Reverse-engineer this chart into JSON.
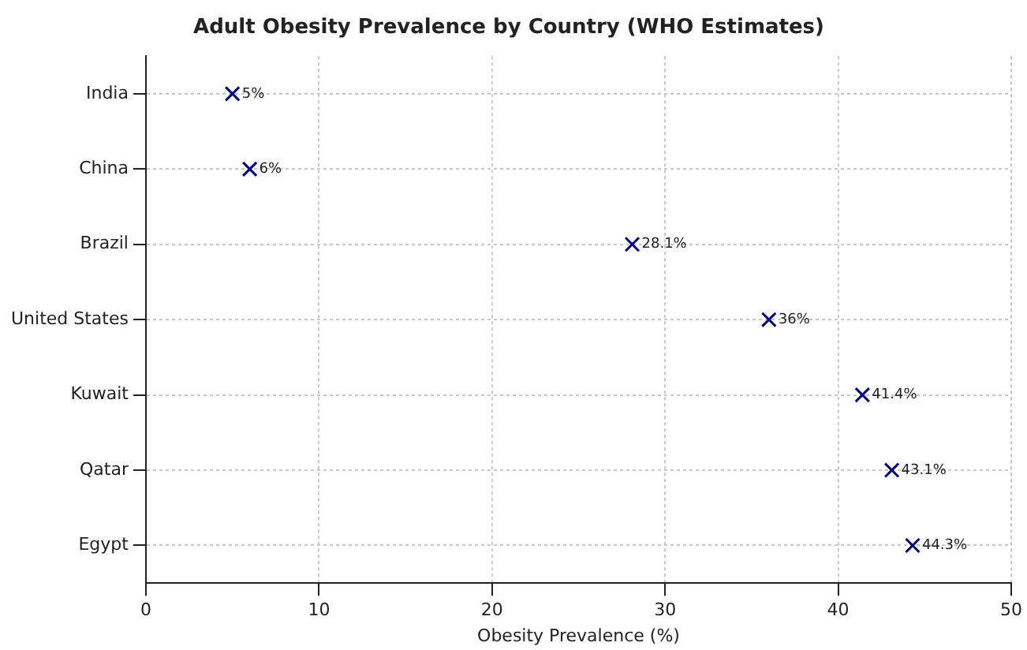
{
  "chart_data": {
    "type": "scatter",
    "title": "Adult Obesity Prevalence by Country (WHO Estimates)",
    "xlabel": "Obesity Prevalence (%)",
    "orientation": "horizontal",
    "categories": [
      "India",
      "China",
      "Brazil",
      "United States",
      "Kuwait",
      "Qatar",
      "Egypt"
    ],
    "values": [
      5,
      6,
      28.1,
      36,
      41.4,
      43.1,
      44.3
    ],
    "value_labels": [
      "5%",
      "6%",
      "28.1%",
      "36%",
      "41.4%",
      "43.1%",
      "44.3%"
    ],
    "color": "#00008b",
    "marker": "cross",
    "xlim": [
      0,
      50
    ],
    "xticks": [
      0,
      10,
      20,
      30,
      40,
      50
    ],
    "grid": true,
    "legend": false
  }
}
